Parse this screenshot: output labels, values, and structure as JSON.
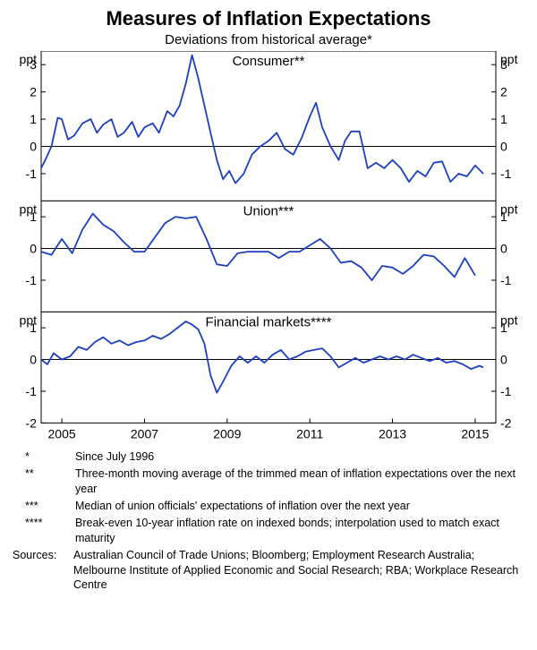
{
  "title": "Measures of Inflation Expectations",
  "subtitle": "Deviations from historical average*",
  "panels": [
    {
      "label": "Consumer**",
      "ylabel_left": "ppt",
      "ylabel_right": "ppt",
      "ylim": [
        -2,
        3.5
      ],
      "yticks": [
        -1,
        0,
        1,
        2,
        3
      ],
      "height_ratio": 1.35,
      "data": [
        [
          2004.5,
          -0.8
        ],
        [
          2004.6,
          -0.5
        ],
        [
          2004.75,
          0.0
        ],
        [
          2004.9,
          1.05
        ],
        [
          2005.0,
          1.0
        ],
        [
          2005.15,
          0.25
        ],
        [
          2005.3,
          0.4
        ],
        [
          2005.5,
          0.85
        ],
        [
          2005.7,
          1.0
        ],
        [
          2005.85,
          0.5
        ],
        [
          2006.0,
          0.8
        ],
        [
          2006.2,
          1.0
        ],
        [
          2006.35,
          0.35
        ],
        [
          2006.5,
          0.5
        ],
        [
          2006.7,
          0.9
        ],
        [
          2006.85,
          0.35
        ],
        [
          2007.0,
          0.7
        ],
        [
          2007.2,
          0.85
        ],
        [
          2007.35,
          0.5
        ],
        [
          2007.55,
          1.3
        ],
        [
          2007.7,
          1.1
        ],
        [
          2007.85,
          1.5
        ],
        [
          2008.0,
          2.3
        ],
        [
          2008.15,
          3.35
        ],
        [
          2008.3,
          2.5
        ],
        [
          2008.45,
          1.5
        ],
        [
          2008.6,
          0.5
        ],
        [
          2008.75,
          -0.5
        ],
        [
          2008.9,
          -1.2
        ],
        [
          2009.05,
          -0.9
        ],
        [
          2009.2,
          -1.35
        ],
        [
          2009.4,
          -1.0
        ],
        [
          2009.6,
          -0.3
        ],
        [
          2009.8,
          0.0
        ],
        [
          2010.0,
          0.2
        ],
        [
          2010.2,
          0.5
        ],
        [
          2010.4,
          -0.1
        ],
        [
          2010.6,
          -0.3
        ],
        [
          2010.8,
          0.3
        ],
        [
          2011.0,
          1.1
        ],
        [
          2011.15,
          1.6
        ],
        [
          2011.3,
          0.7
        ],
        [
          2011.5,
          0.0
        ],
        [
          2011.7,
          -0.5
        ],
        [
          2011.85,
          0.2
        ],
        [
          2012.0,
          0.55
        ],
        [
          2012.2,
          0.55
        ],
        [
          2012.4,
          -0.8
        ],
        [
          2012.6,
          -0.6
        ],
        [
          2012.8,
          -0.8
        ],
        [
          2013.0,
          -0.5
        ],
        [
          2013.2,
          -0.8
        ],
        [
          2013.4,
          -1.3
        ],
        [
          2013.6,
          -0.9
        ],
        [
          2013.8,
          -1.1
        ],
        [
          2014.0,
          -0.6
        ],
        [
          2014.2,
          -0.55
        ],
        [
          2014.4,
          -1.3
        ],
        [
          2014.6,
          -1.0
        ],
        [
          2014.8,
          -1.1
        ],
        [
          2015.0,
          -0.7
        ],
        [
          2015.2,
          -1.0
        ]
      ]
    },
    {
      "label": "Union***",
      "ylabel_left": "ppt",
      "ylabel_right": "ppt",
      "ylim": [
        -2,
        1.5
      ],
      "yticks": [
        -1,
        0,
        1
      ],
      "height_ratio": 1.0,
      "data": [
        [
          2004.5,
          -0.1
        ],
        [
          2004.75,
          -0.2
        ],
        [
          2005.0,
          0.3
        ],
        [
          2005.25,
          -0.15
        ],
        [
          2005.5,
          0.6
        ],
        [
          2005.75,
          1.1
        ],
        [
          2006.0,
          0.75
        ],
        [
          2006.25,
          0.55
        ],
        [
          2006.5,
          0.2
        ],
        [
          2006.75,
          -0.1
        ],
        [
          2007.0,
          -0.1
        ],
        [
          2007.25,
          0.35
        ],
        [
          2007.5,
          0.8
        ],
        [
          2007.75,
          1.0
        ],
        [
          2008.0,
          0.95
        ],
        [
          2008.25,
          1.0
        ],
        [
          2008.5,
          0.3
        ],
        [
          2008.75,
          -0.5
        ],
        [
          2009.0,
          -0.55
        ],
        [
          2009.25,
          -0.15
        ],
        [
          2009.5,
          -0.1
        ],
        [
          2009.75,
          -0.1
        ],
        [
          2010.0,
          -0.1
        ],
        [
          2010.25,
          -0.3
        ],
        [
          2010.5,
          -0.1
        ],
        [
          2010.75,
          -0.1
        ],
        [
          2011.0,
          0.1
        ],
        [
          2011.25,
          0.3
        ],
        [
          2011.5,
          0.0
        ],
        [
          2011.75,
          -0.45
        ],
        [
          2012.0,
          -0.4
        ],
        [
          2012.25,
          -0.6
        ],
        [
          2012.5,
          -1.0
        ],
        [
          2012.75,
          -0.55
        ],
        [
          2013.0,
          -0.6
        ],
        [
          2013.25,
          -0.8
        ],
        [
          2013.5,
          -0.55
        ],
        [
          2013.75,
          -0.2
        ],
        [
          2014.0,
          -0.25
        ],
        [
          2014.25,
          -0.55
        ],
        [
          2014.5,
          -0.9
        ],
        [
          2014.75,
          -0.3
        ],
        [
          2015.0,
          -0.85
        ]
      ]
    },
    {
      "label": "Financial markets****",
      "ylabel_left": "ppt",
      "ylabel_right": "ppt",
      "ylim": [
        -2,
        1.5
      ],
      "yticks": [
        -2,
        -1,
        0,
        1
      ],
      "height_ratio": 1.0,
      "data": [
        [
          2004.5,
          0.0
        ],
        [
          2004.65,
          -0.15
        ],
        [
          2004.8,
          0.2
        ],
        [
          2005.0,
          0.0
        ],
        [
          2005.2,
          0.1
        ],
        [
          2005.4,
          0.4
        ],
        [
          2005.6,
          0.3
        ],
        [
          2005.8,
          0.55
        ],
        [
          2006.0,
          0.7
        ],
        [
          2006.2,
          0.5
        ],
        [
          2006.4,
          0.6
        ],
        [
          2006.6,
          0.45
        ],
        [
          2006.8,
          0.55
        ],
        [
          2007.0,
          0.6
        ],
        [
          2007.2,
          0.75
        ],
        [
          2007.4,
          0.65
        ],
        [
          2007.6,
          0.8
        ],
        [
          2007.8,
          1.0
        ],
        [
          2008.0,
          1.2
        ],
        [
          2008.15,
          1.1
        ],
        [
          2008.3,
          0.95
        ],
        [
          2008.45,
          0.5
        ],
        [
          2008.6,
          -0.5
        ],
        [
          2008.75,
          -1.05
        ],
        [
          2008.9,
          -0.7
        ],
        [
          2009.1,
          -0.2
        ],
        [
          2009.3,
          0.1
        ],
        [
          2009.5,
          -0.1
        ],
        [
          2009.7,
          0.1
        ],
        [
          2009.9,
          -0.1
        ],
        [
          2010.1,
          0.15
        ],
        [
          2010.3,
          0.3
        ],
        [
          2010.5,
          0.0
        ],
        [
          2010.7,
          0.1
        ],
        [
          2010.9,
          0.25
        ],
        [
          2011.1,
          0.3
        ],
        [
          2011.3,
          0.35
        ],
        [
          2011.5,
          0.1
        ],
        [
          2011.7,
          -0.25
        ],
        [
          2011.9,
          -0.1
        ],
        [
          2012.1,
          0.05
        ],
        [
          2012.3,
          -0.1
        ],
        [
          2012.5,
          0.0
        ],
        [
          2012.7,
          0.1
        ],
        [
          2012.9,
          0.0
        ],
        [
          2013.1,
          0.1
        ],
        [
          2013.3,
          0.0
        ],
        [
          2013.5,
          0.15
        ],
        [
          2013.7,
          0.05
        ],
        [
          2013.9,
          -0.05
        ],
        [
          2014.1,
          0.05
        ],
        [
          2014.3,
          -0.1
        ],
        [
          2014.5,
          -0.05
        ],
        [
          2014.7,
          -0.15
        ],
        [
          2014.9,
          -0.3
        ],
        [
          2015.1,
          -0.2
        ],
        [
          2015.2,
          -0.25
        ]
      ]
    }
  ],
  "x_axis": {
    "xlim": [
      2004.5,
      2015.5
    ],
    "ticks": [
      2005,
      2007,
      2009,
      2011,
      2013,
      2015
    ]
  },
  "colors": {
    "line": "#1e3fbf",
    "zero_line": "#000000",
    "border": "#000000",
    "background": "#ffffff",
    "text": "#000000"
  },
  "line_width": 1.8,
  "tick_fontsize": 14,
  "panel_label_fontsize": 15,
  "footnotes": [
    {
      "mark": "*",
      "text": "Since July 1996"
    },
    {
      "mark": "**",
      "text": "Three-month moving average of the trimmed mean of inflation expectations over the next year"
    },
    {
      "mark": "***",
      "text": "Median of union officials' expectations of inflation over the next year"
    },
    {
      "mark": "****",
      "text": "Break-even 10-year inflation rate on indexed bonds; interpolation used to match exact maturity"
    }
  ],
  "sources_label": "Sources:",
  "sources": "Australian Council of Trade Unions; Bloomberg; Employment Research Australia; Melbourne Institute of Applied Economic and Social Research; RBA; Workplace Research Centre"
}
